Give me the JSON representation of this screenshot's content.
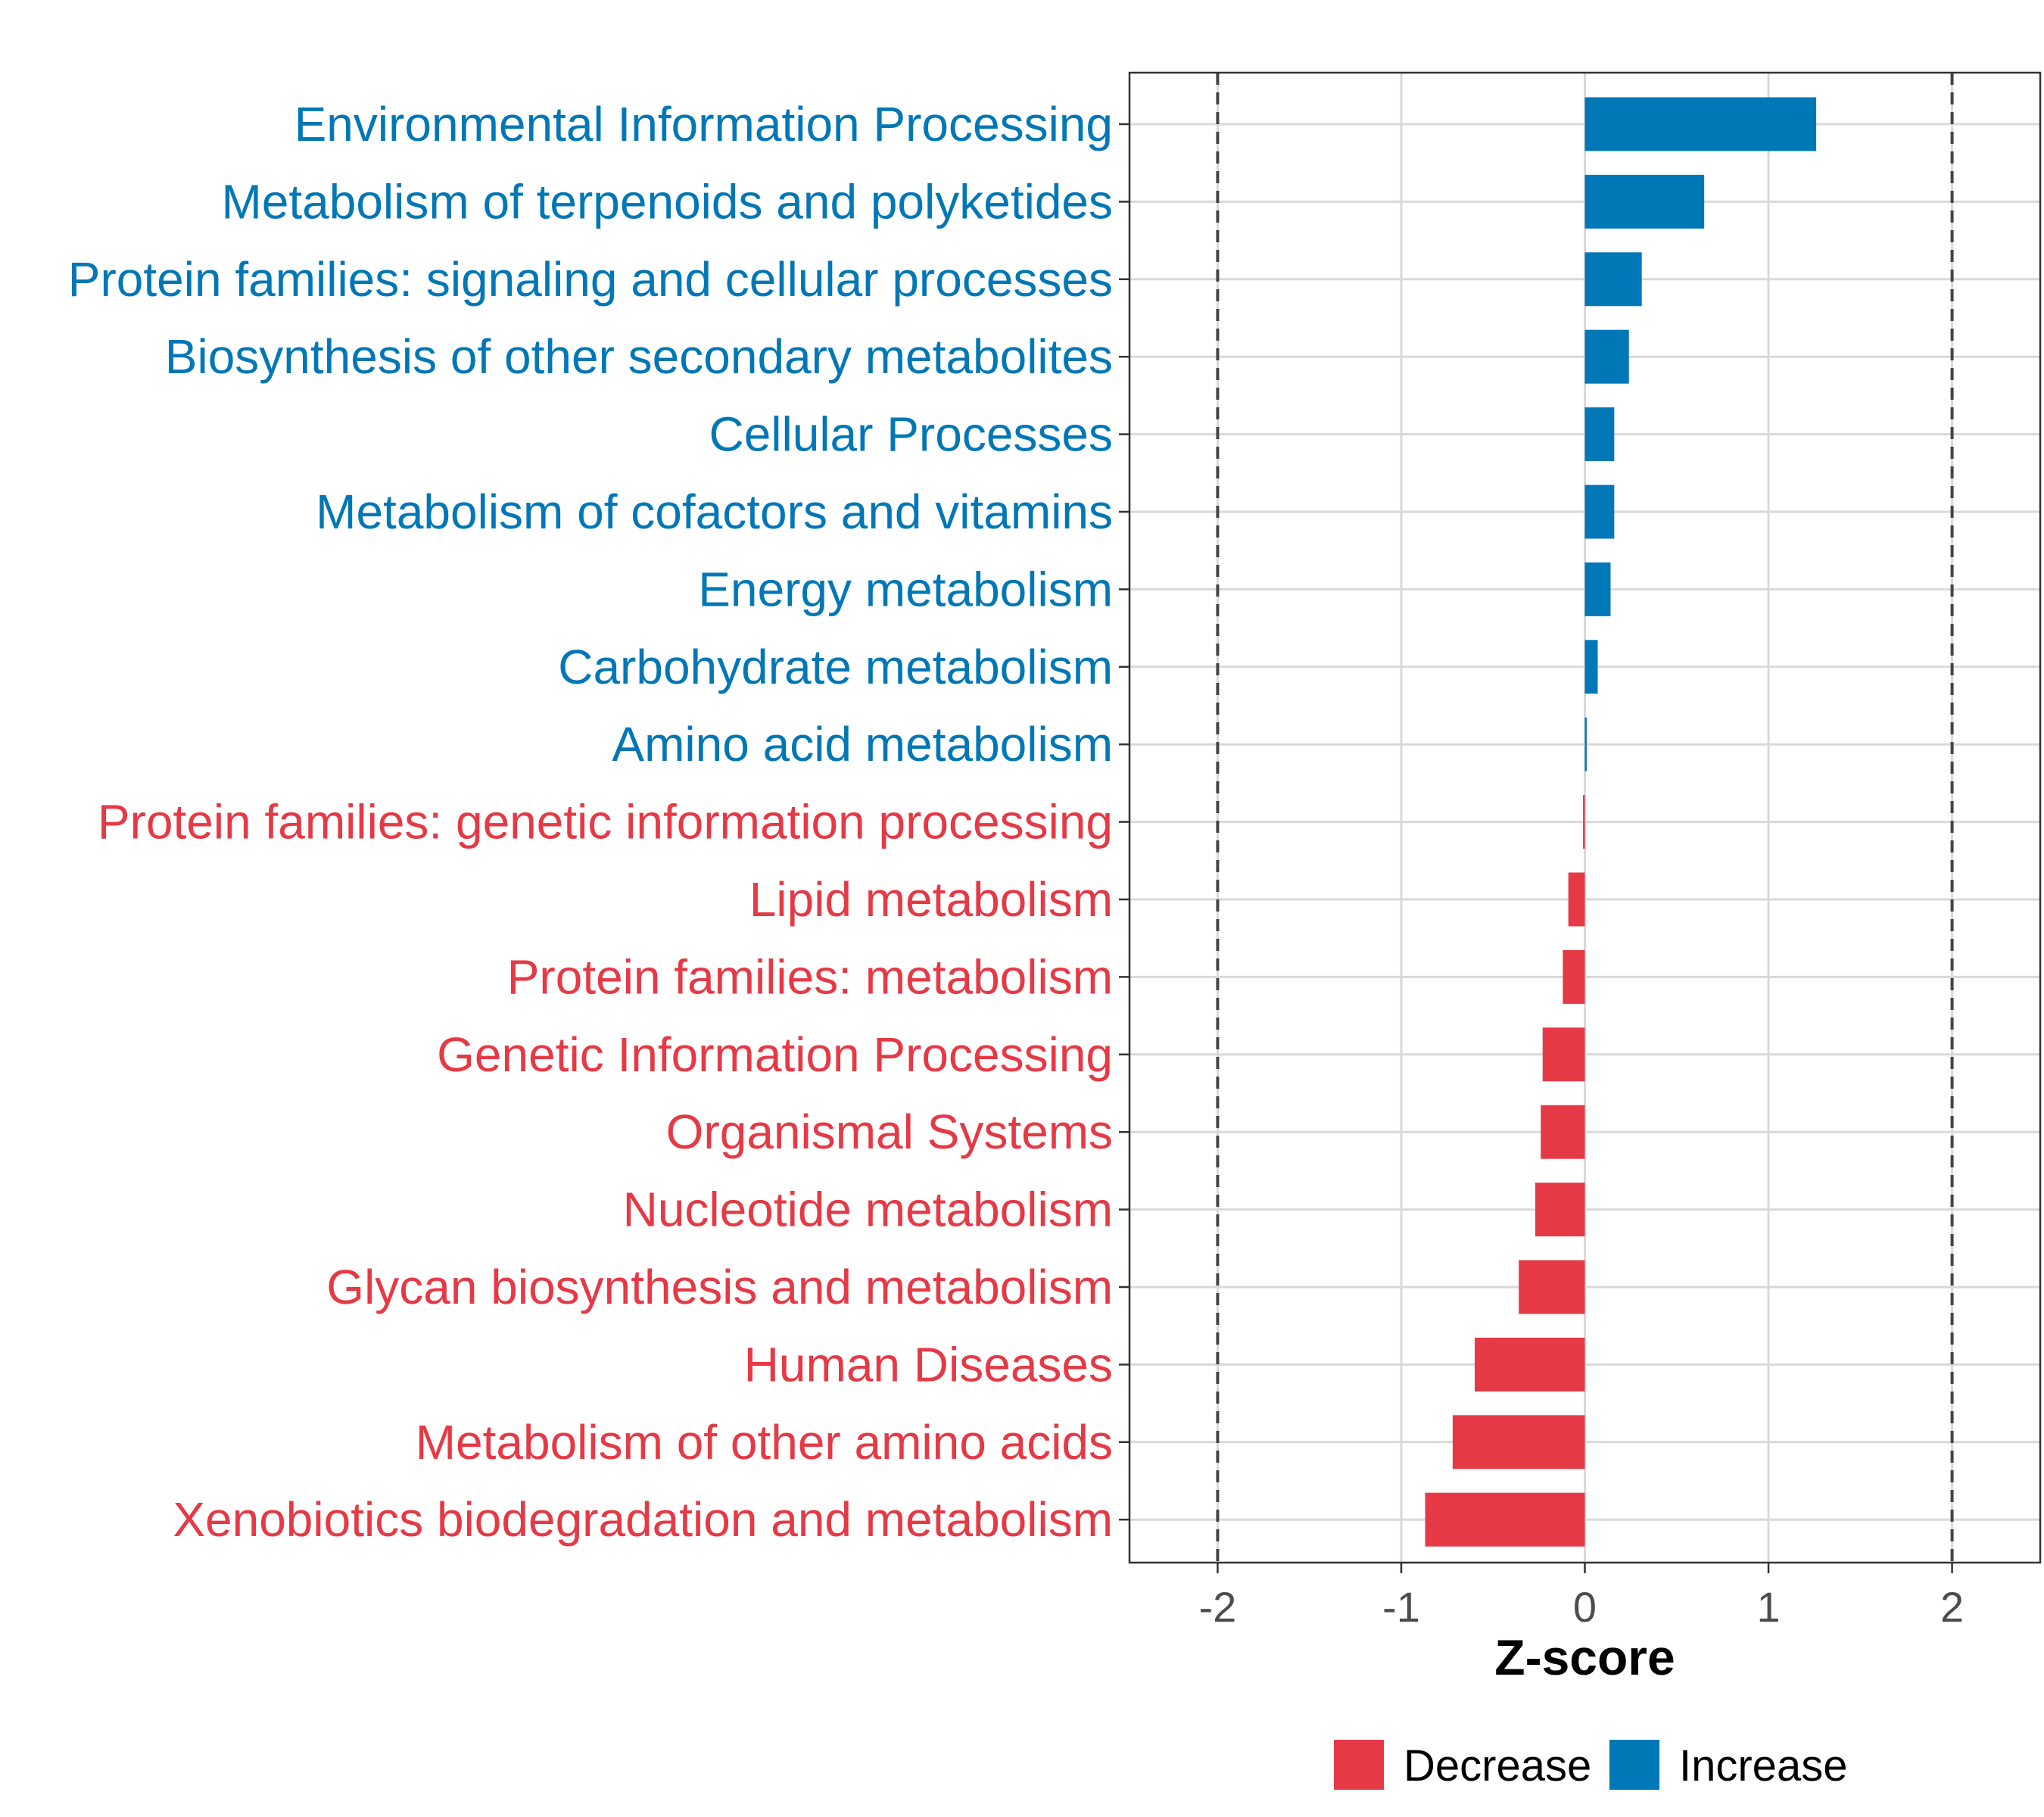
{
  "chart_data": {
    "type": "bar",
    "orientation": "horizontal",
    "xlabel": "Z-score",
    "xlim": [
      -2.48,
      2.48
    ],
    "xticks": [
      -2,
      -1,
      0,
      1,
      2
    ],
    "xtick_labels": [
      "-2",
      "-1",
      "0",
      "1",
      "2"
    ],
    "threshold_lines": [
      -2,
      2
    ],
    "grid": true,
    "legend_position": "bottom",
    "colors": {
      "Decrease": "#e63946",
      "Increase": "#0077b6"
    },
    "legend": [
      {
        "label": "Decrease",
        "color": "#e63946"
      },
      {
        "label": "Increase",
        "color": "#0077b6"
      }
    ],
    "categories": [
      "Environmental Information Processing",
      "Metabolism of terpenoids and polyketides",
      "Protein families: signaling and cellular processes",
      "Biosynthesis of other secondary metabolites",
      "Cellular Processes",
      "Metabolism of cofactors and vitamins",
      "Energy metabolism",
      "Carbohydrate metabolism",
      "Amino acid metabolism",
      "Protein families: genetic information processing",
      "Lipid metabolism",
      "Protein families: metabolism",
      "Genetic Information Processing",
      "Organismal Systems",
      "Nucleotide metabolism",
      "Glycan biosynthesis and metabolism",
      "Human Diseases",
      "Metabolism of other amino acids",
      "Xenobiotics biodegradation and metabolism"
    ],
    "values": [
      1.26,
      0.65,
      0.31,
      0.24,
      0.16,
      0.16,
      0.14,
      0.07,
      0.01,
      -0.01,
      -0.09,
      -0.12,
      -0.23,
      -0.24,
      -0.27,
      -0.36,
      -0.6,
      -0.72,
      -0.87
    ],
    "groups": [
      "Increase",
      "Increase",
      "Increase",
      "Increase",
      "Increase",
      "Increase",
      "Increase",
      "Increase",
      "Increase",
      "Decrease",
      "Decrease",
      "Decrease",
      "Decrease",
      "Decrease",
      "Decrease",
      "Decrease",
      "Decrease",
      "Decrease",
      "Decrease"
    ]
  }
}
